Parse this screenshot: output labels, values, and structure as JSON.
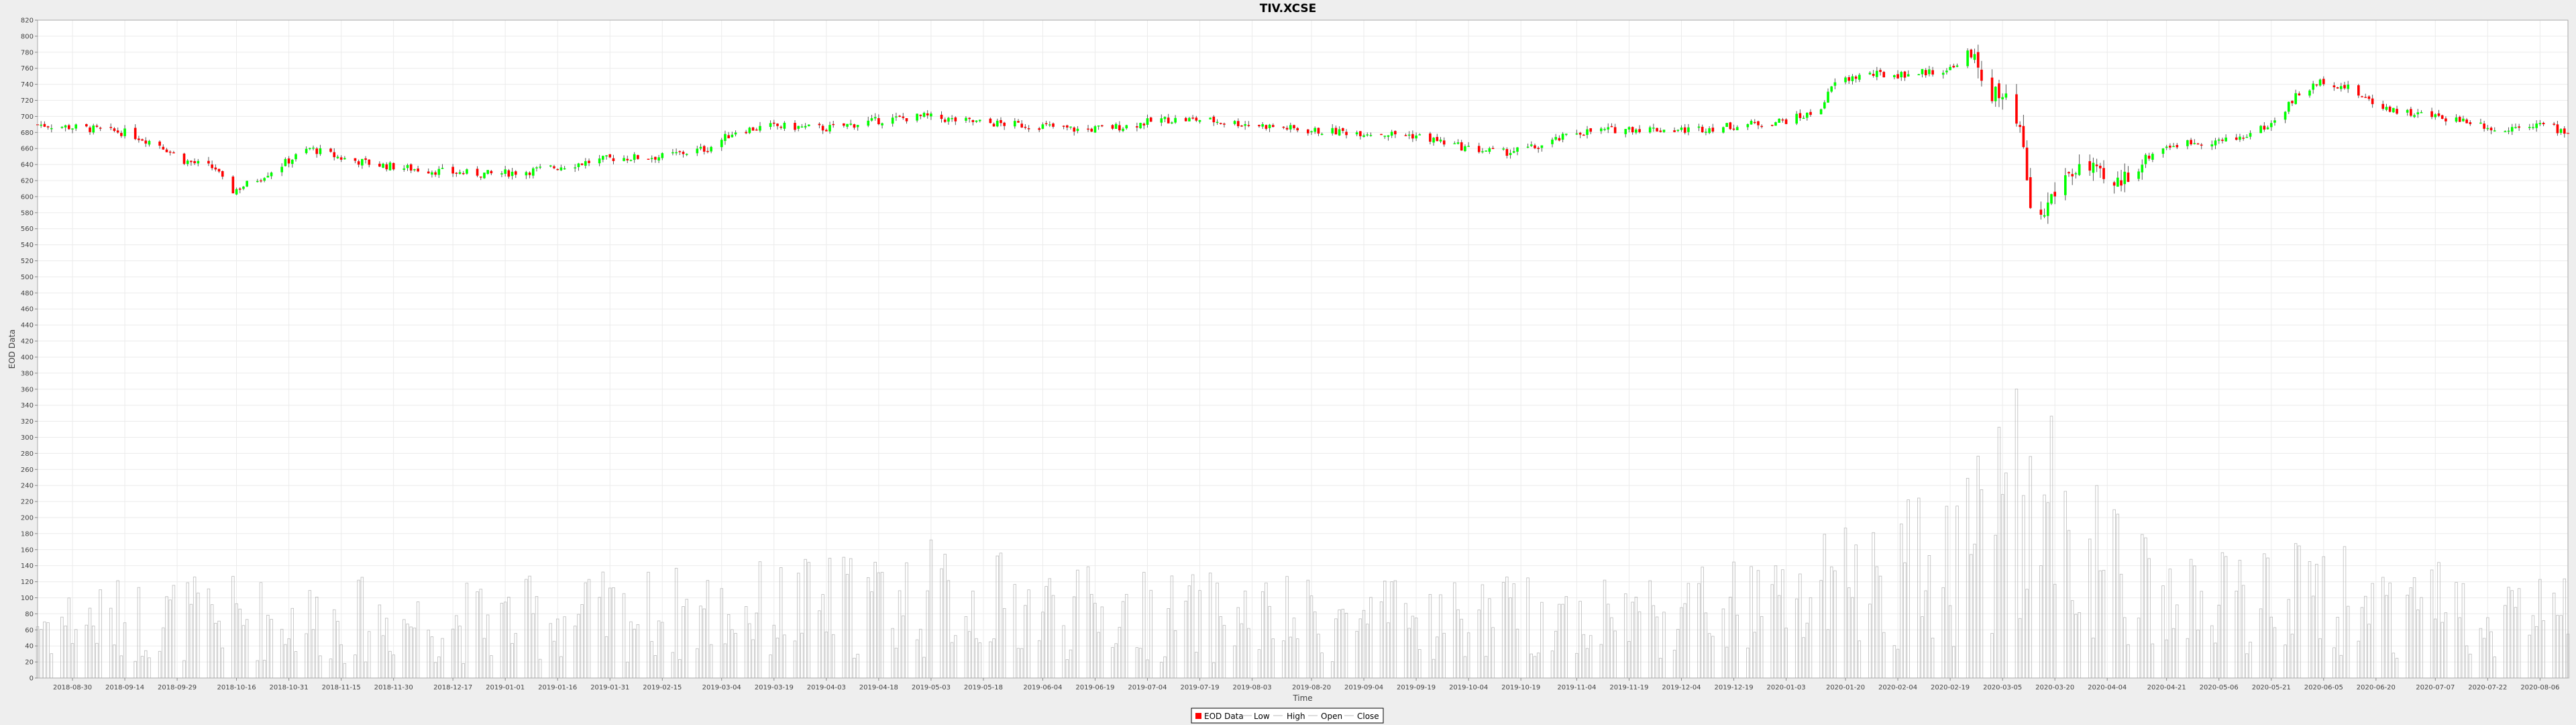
{
  "chart_data": {
    "type": "candlestick",
    "title": "TIV.XCSE",
    "xlabel": "Time",
    "ylabel": "EOD Data",
    "ylim": [
      0,
      820
    ],
    "y_ticks": [
      0,
      20,
      40,
      60,
      80,
      100,
      120,
      140,
      160,
      180,
      200,
      220,
      240,
      260,
      280,
      300,
      320,
      340,
      360,
      380,
      400,
      420,
      440,
      460,
      480,
      500,
      520,
      540,
      560,
      580,
      600,
      620,
      640,
      660,
      680,
      700,
      720,
      740,
      760,
      780,
      800,
      820
    ],
    "x_range": [
      "2018-08-20",
      "2020-08-14"
    ],
    "x_ticks": [
      "2018-08-30",
      "2018-09-14",
      "2018-09-29",
      "2018-10-16",
      "2018-10-31",
      "2018-11-15",
      "2018-11-30",
      "2018-12-17",
      "2019-01-01",
      "2019-01-16",
      "2019-01-31",
      "2019-02-15",
      "2019-03-04",
      "2019-03-19",
      "2019-04-03",
      "2019-04-18",
      "2019-05-03",
      "2019-05-18",
      "2019-06-04",
      "2019-06-19",
      "2019-07-04",
      "2019-07-19",
      "2019-08-03",
      "2019-08-20",
      "2019-09-04",
      "2019-09-19",
      "2019-10-04",
      "2019-10-19",
      "2019-11-04",
      "2019-11-19",
      "2019-12-04",
      "2019-12-19",
      "2020-01-03",
      "2020-01-20",
      "2020-02-04",
      "2020-02-19",
      "2020-03-05",
      "2020-03-20",
      "2020-04-04",
      "2020-04-21",
      "2020-05-06",
      "2020-05-21",
      "2020-06-05",
      "2020-06-20",
      "2020-07-07",
      "2020-07-22",
      "2020-08-06"
    ],
    "grid": true,
    "legend_position": "bottom-center",
    "legend": [
      "EOD Data",
      "Low",
      "High",
      "Open",
      "Close"
    ],
    "colors": {
      "up": "#00ff00",
      "down": "#ff0000",
      "wick": "#555555",
      "volume": "#bbbbbb",
      "grid": "#ebebeb",
      "plot_bg": "#ffffff",
      "page_bg": "#eeeeee"
    },
    "price_anchors": [
      [
        "2018-08-20",
        690
      ],
      [
        "2018-09-03",
        685
      ],
      [
        "2018-09-14",
        680
      ],
      [
        "2018-09-24",
        665
      ],
      [
        "2018-10-01",
        645
      ],
      [
        "2018-10-10",
        635
      ],
      [
        "2018-10-14",
        605
      ],
      [
        "2018-10-22",
        622
      ],
      [
        "2018-10-31",
        645
      ],
      [
        "2018-11-06",
        660
      ],
      [
        "2018-11-15",
        648
      ],
      [
        "2018-11-25",
        640
      ],
      [
        "2018-12-05",
        635
      ],
      [
        "2018-12-17",
        630
      ],
      [
        "2018-12-28",
        628
      ],
      [
        "2019-01-08",
        632
      ],
      [
        "2019-01-20",
        640
      ],
      [
        "2019-02-01",
        648
      ],
      [
        "2019-02-15",
        650
      ],
      [
        "2019-02-28",
        660
      ],
      [
        "2019-03-08",
        682
      ],
      [
        "2019-03-19",
        688
      ],
      [
        "2019-04-03",
        685
      ],
      [
        "2019-04-18",
        695
      ],
      [
        "2019-05-01",
        700
      ],
      [
        "2019-05-10",
        695
      ],
      [
        "2019-05-18",
        692
      ],
      [
        "2019-06-04",
        688
      ],
      [
        "2019-06-15",
        683
      ],
      [
        "2019-06-28",
        688
      ],
      [
        "2019-07-08",
        696
      ],
      [
        "2019-07-19",
        696
      ],
      [
        "2019-08-03",
        690
      ],
      [
        "2019-08-20",
        682
      ],
      [
        "2019-09-04",
        680
      ],
      [
        "2019-09-19",
        676
      ],
      [
        "2019-10-04",
        660
      ],
      [
        "2019-10-14",
        655
      ],
      [
        "2019-10-24",
        662
      ],
      [
        "2019-11-04",
        680
      ],
      [
        "2019-11-19",
        685
      ],
      [
        "2019-12-04",
        683
      ],
      [
        "2019-12-19",
        688
      ],
      [
        "2020-01-03",
        695
      ],
      [
        "2020-01-12",
        705
      ],
      [
        "2020-01-17",
        742
      ],
      [
        "2020-01-25",
        752
      ],
      [
        "2020-02-04",
        752
      ],
      [
        "2020-02-14",
        756
      ],
      [
        "2020-02-20",
        760
      ],
      [
        "2020-02-23",
        785
      ],
      [
        "2020-02-27",
        760
      ],
      [
        "2020-03-02",
        730
      ],
      [
        "2020-03-06",
        715
      ],
      [
        "2020-03-10",
        680
      ],
      [
        "2020-03-13",
        590
      ],
      [
        "2020-03-16",
        570
      ],
      [
        "2020-03-19",
        600
      ],
      [
        "2020-03-23",
        625
      ],
      [
        "2020-03-28",
        640
      ],
      [
        "2020-04-01",
        625
      ],
      [
        "2020-04-06",
        610
      ],
      [
        "2020-04-12",
        640
      ],
      [
        "2020-04-20",
        662
      ],
      [
        "2020-04-29",
        668
      ],
      [
        "2020-05-10",
        670
      ],
      [
        "2020-05-21",
        690
      ],
      [
        "2020-05-28",
        725
      ],
      [
        "2020-06-05",
        745
      ],
      [
        "2020-06-12",
        735
      ],
      [
        "2020-06-20",
        715
      ],
      [
        "2020-06-28",
        705
      ],
      [
        "2020-07-07",
        700
      ],
      [
        "2020-07-16",
        695
      ],
      [
        "2020-07-22",
        688
      ],
      [
        "2020-07-26",
        678
      ],
      [
        "2020-07-30",
        690
      ],
      [
        "2020-08-06",
        690
      ],
      [
        "2020-08-14",
        680
      ]
    ],
    "volume_anchors": [
      [
        "2018-08-20",
        70
      ],
      [
        "2018-10-15",
        75
      ],
      [
        "2018-12-17",
        70
      ],
      [
        "2019-03-19",
        85
      ],
      [
        "2019-05-03",
        100
      ],
      [
        "2019-06-19",
        80
      ],
      [
        "2019-09-04",
        70
      ],
      [
        "2019-11-19",
        80
      ],
      [
        "2020-01-03",
        90
      ],
      [
        "2020-02-19",
        150
      ],
      [
        "2020-03-05",
        220
      ],
      [
        "2020-03-20",
        200
      ],
      [
        "2020-04-04",
        130
      ],
      [
        "2020-04-21",
        90
      ],
      [
        "2020-06-05",
        100
      ],
      [
        "2020-08-14",
        80
      ]
    ]
  }
}
